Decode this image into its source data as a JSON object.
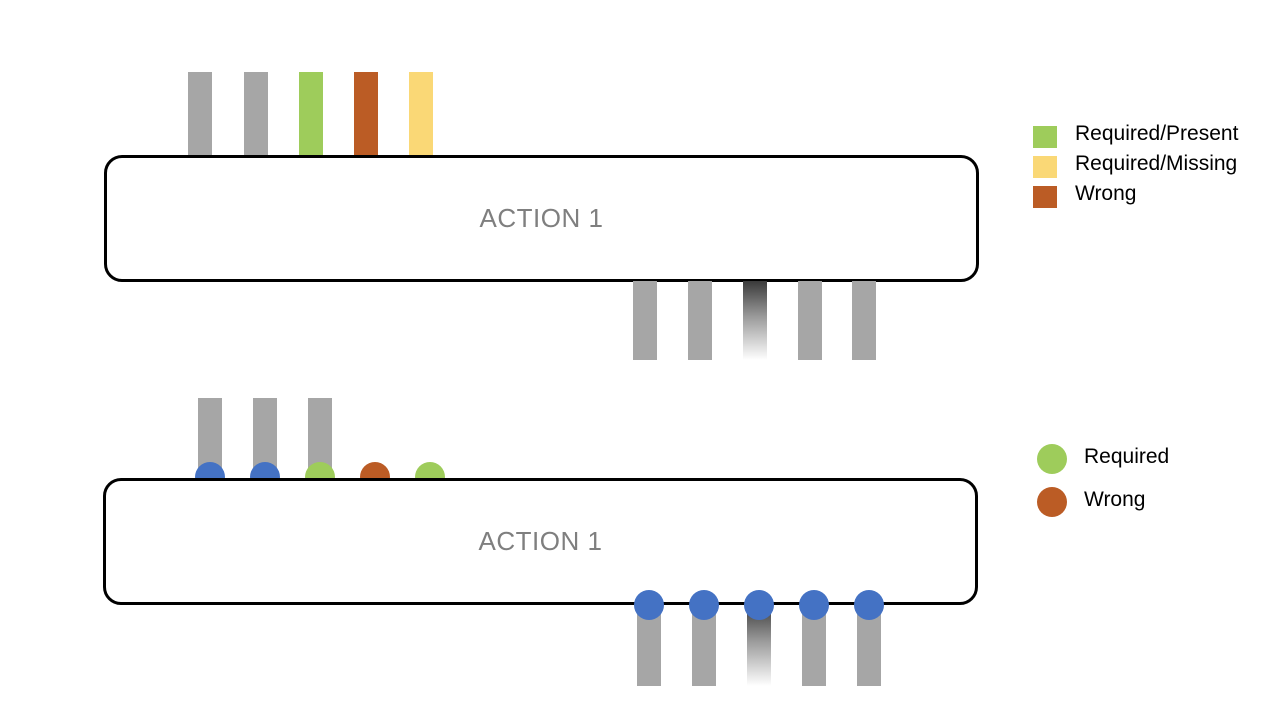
{
  "colors": {
    "gray": "#a6a6a6",
    "required_present": "#9ecc5b",
    "required_missing": "#fad876",
    "wrong": "#bb5c25",
    "blue": "#4472c4",
    "required": "#9ecc5b",
    "box_text": "#7f7f7f",
    "border": "#000000"
  },
  "diagram_top": {
    "label": "ACTION 1",
    "input_ports": [
      "gray",
      "gray",
      "required_present",
      "wrong",
      "required_missing"
    ],
    "output_ports": [
      "gray",
      "gray",
      "fading",
      "gray",
      "gray"
    ]
  },
  "diagram_bottom": {
    "label": "ACTION 1",
    "input_ports": [
      {
        "bar": true,
        "dot": "blue"
      },
      {
        "bar": true,
        "dot": "blue"
      },
      {
        "bar": true,
        "dot": "required"
      },
      {
        "bar": false,
        "dot": "wrong"
      },
      {
        "bar": false,
        "dot": "required"
      }
    ],
    "output_ports": [
      {
        "bar": "gray",
        "dot": "blue"
      },
      {
        "bar": "gray",
        "dot": "blue"
      },
      {
        "bar": "fading",
        "dot": "blue"
      },
      {
        "bar": "gray",
        "dot": "blue"
      },
      {
        "bar": "gray",
        "dot": "blue"
      }
    ]
  },
  "legend_top": [
    {
      "label": "Required/Present",
      "color": "required_present"
    },
    {
      "label": "Required/Missing",
      "color": "required_missing"
    },
    {
      "label": "Wrong",
      "color": "wrong"
    }
  ],
  "legend_bottom": [
    {
      "label": "Required",
      "color": "required"
    },
    {
      "label": "Wrong",
      "color": "wrong"
    }
  ]
}
